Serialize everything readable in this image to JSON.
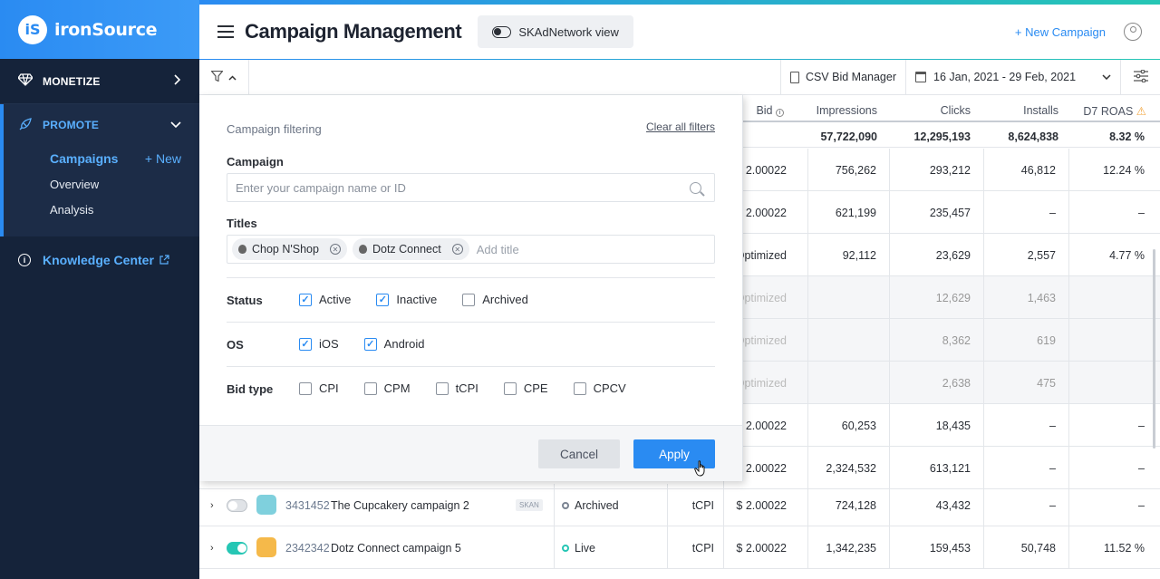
{
  "brand": {
    "logo_mark": "iS",
    "name": "ironSource"
  },
  "sidebar": {
    "monetize_label": "MONETIZE",
    "promote_label": "PROMOTE",
    "promote_items": [
      {
        "label": "Campaigns",
        "new": "+ New"
      },
      {
        "label": "Overview"
      },
      {
        "label": "Analysis"
      }
    ],
    "knowledge_label": "Knowledge Center"
  },
  "header": {
    "title": "Campaign Management",
    "skad_label": "SKAdNetwork view",
    "new_campaign": "+ New Campaign"
  },
  "toolbar": {
    "csv_label": "CSV Bid Manager",
    "date_range": "16 Jan, 2021 - 29 Feb, 2021"
  },
  "table": {
    "headers": {
      "bid": "Bid",
      "impressions": "Impressions",
      "clicks": "Clicks",
      "installs": "Installs",
      "roas": "D7 ROAS"
    },
    "totals": {
      "impressions": "57,722,090",
      "clicks": "12,295,193",
      "installs": "8,624,838",
      "roas": "8.32 %"
    },
    "rows": [
      {
        "bid": "$ 2.00022",
        "impressions": "756,262",
        "clicks": "293,212",
        "installs": "46,812",
        "roas": "12.24 %"
      },
      {
        "bid": "$ 2.00022",
        "impressions": "621,199",
        "clicks": "235,457",
        "installs": "–",
        "roas": "–"
      },
      {
        "bid": "Optimized",
        "impressions": "92,112",
        "clicks": "23,629",
        "installs": "2,557",
        "roas": "4.77 %"
      },
      {
        "bid": "Optimized",
        "impressions": "",
        "clicks": "12,629",
        "installs": "1,463",
        "roas": ""
      },
      {
        "bid": "Optimized",
        "impressions": "",
        "clicks": "8,362",
        "installs": "619",
        "roas": ""
      },
      {
        "bid": "Optimized",
        "impressions": "",
        "clicks": "2,638",
        "installs": "475",
        "roas": ""
      },
      {
        "bid": "$ 2.00022",
        "impressions": "60,253",
        "clicks": "18,435",
        "installs": "–",
        "roas": "–"
      },
      {
        "bid": "$ 2.00022",
        "impressions": "2,324,532",
        "clicks": "613,121",
        "installs": "–",
        "roas": "–"
      }
    ],
    "campaign_rows": [
      {
        "id": "3431452",
        "name": "The Cupcakery campaign 2",
        "skan": "SKAN",
        "status": "Archived",
        "bid_type": "tCPI",
        "bid": "$ 2.00022",
        "impressions": "724,128",
        "clicks": "43,432",
        "installs": "–",
        "roas": "–"
      },
      {
        "id": "2342342",
        "name": "Dotz Connect campaign 5",
        "status": "Live",
        "bid_type": "tCPI",
        "bid": "$ 2.00022",
        "impressions": "1,342,235",
        "clicks": "159,453",
        "installs": "50,748",
        "roas": "11.52 %"
      }
    ]
  },
  "filter_panel": {
    "title": "Campaign filtering",
    "clear_all": "Clear all filters",
    "campaign_label": "Campaign",
    "campaign_placeholder": "Enter your campaign name or ID",
    "titles_label": "Titles",
    "title_chips": [
      "Chop N'Shop",
      "Dotz Connect"
    ],
    "add_title_placeholder": "Add title",
    "status_label": "Status",
    "status_options": [
      {
        "label": "Active",
        "checked": true
      },
      {
        "label": "Inactive",
        "checked": true
      },
      {
        "label": "Archived",
        "checked": false
      }
    ],
    "os_label": "OS",
    "os_options": [
      {
        "label": "iOS",
        "checked": true
      },
      {
        "label": "Android",
        "checked": true
      }
    ],
    "bid_type_label": "Bid type",
    "bid_type_options": [
      {
        "label": "CPI",
        "checked": false
      },
      {
        "label": "CPM",
        "checked": false
      },
      {
        "label": "tCPI",
        "checked": false
      },
      {
        "label": "CPE",
        "checked": false
      },
      {
        "label": "CPCV",
        "checked": false
      }
    ],
    "cancel_label": "Cancel",
    "apply_label": "Apply"
  },
  "colors": {
    "accent": "#2a8bf2",
    "live": "#26c6b4",
    "sidebar": "#15233a"
  }
}
